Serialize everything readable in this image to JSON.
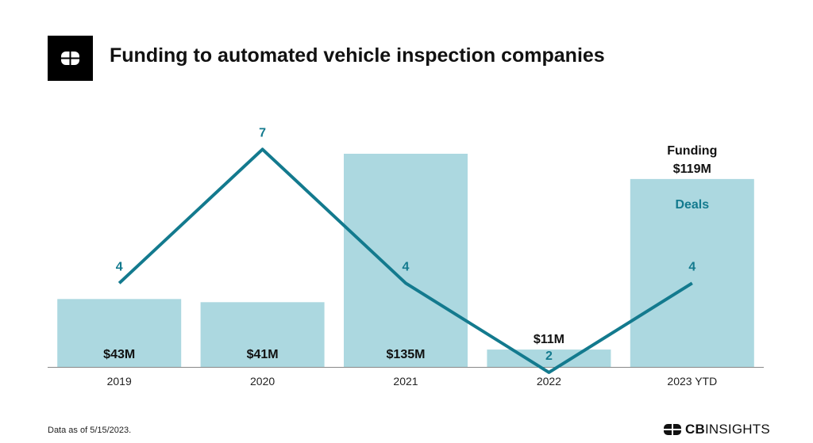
{
  "title": "Funding to automated vehicle inspection companies",
  "logo_icon": "cb-insights-logo-icon",
  "footnote": "Data as of 5/15/2023.",
  "brand": {
    "bold": "CB",
    "light": "INSIGHTS"
  },
  "colors": {
    "bar": "#acd8e0",
    "line": "#137a8e",
    "funding_label": "#111111",
    "deals_label": "#137a8e"
  },
  "chart_data": {
    "type": "bar",
    "title": "Funding to automated vehicle inspection companies",
    "categories": [
      "2019",
      "2020",
      "2021",
      "2022",
      "2023 YTD"
    ],
    "series": [
      {
        "name": "Funding",
        "type": "bar",
        "unit": "$M",
        "values": [
          43,
          41,
          135,
          11,
          119
        ],
        "labels": [
          "$43M",
          "$41M",
          "$135M",
          "$11M",
          "$119M"
        ]
      },
      {
        "name": "Deals",
        "type": "line",
        "values": [
          4,
          7,
          4,
          2,
          4
        ],
        "labels": [
          "4",
          "7",
          "4",
          "2",
          "4"
        ]
      }
    ],
    "legend_labels": {
      "funding": "Funding",
      "deals": "Deals"
    },
    "funding_ylim": [
      0,
      145
    ],
    "deals_ylim": [
      0,
      9.85
    ],
    "grid": false
  }
}
